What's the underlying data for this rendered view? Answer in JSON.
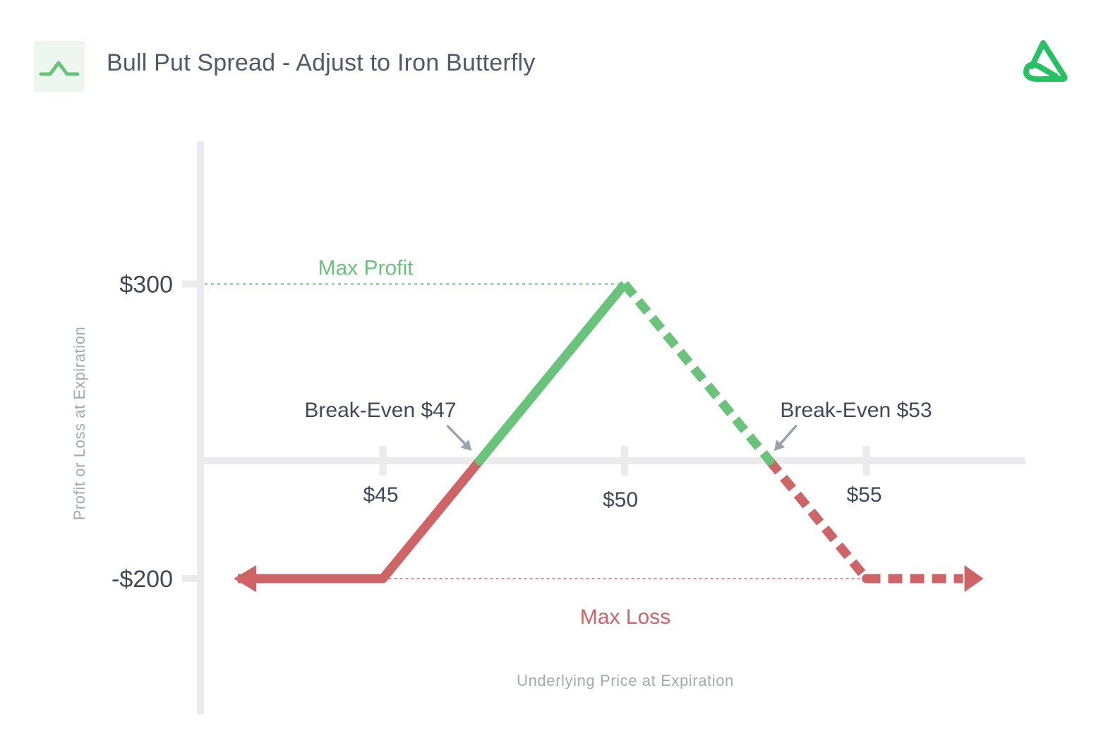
{
  "header": {
    "title": "Bull Put Spread - Adjust to Iron Butterfly",
    "strategy_icon": "tent-payoff-icon",
    "brand_logo": "brand-logo-icon"
  },
  "colors": {
    "profit": "#6ac37a",
    "loss": "#cf6466",
    "axis": "#ebebed",
    "text_dark": "#3e4a57",
    "text_muted": "#a3aab2",
    "arrow": "#9aa2ab"
  },
  "chart_data": {
    "type": "line",
    "title": "Bull Put Spread - Adjust to Iron Butterfly",
    "xlabel": "Underlying Price at Expiration",
    "ylabel": "Profit or Loss at Expiration",
    "x_ticks": [
      {
        "value": 45,
        "label": "$45"
      },
      {
        "value": 50,
        "label": "$50"
      },
      {
        "value": 55,
        "label": "$55"
      }
    ],
    "y_ticks": [
      {
        "value": 300,
        "label": "$300"
      },
      {
        "value": -200,
        "label": "-$200"
      }
    ],
    "series": [
      {
        "style": "solid",
        "points": [
          [
            42,
            -200
          ],
          [
            45,
            -200
          ],
          [
            47,
            0
          ],
          [
            50,
            300
          ]
        ],
        "arrow_left": true
      },
      {
        "style": "dashed",
        "points": [
          [
            50,
            300
          ],
          [
            53,
            0
          ],
          [
            55,
            -200
          ],
          [
            57,
            -200
          ]
        ],
        "arrow_right": true
      }
    ],
    "reference_lines": [
      {
        "y": 300,
        "label": "Max Profit",
        "color": "profit"
      },
      {
        "y": -200,
        "label": "Max Loss",
        "color": "loss"
      }
    ],
    "annotations": [
      {
        "label": "Break-Even $47",
        "x": 47,
        "y": 0
      },
      {
        "label": "Break-Even $53",
        "x": 53,
        "y": 0
      }
    ]
  }
}
